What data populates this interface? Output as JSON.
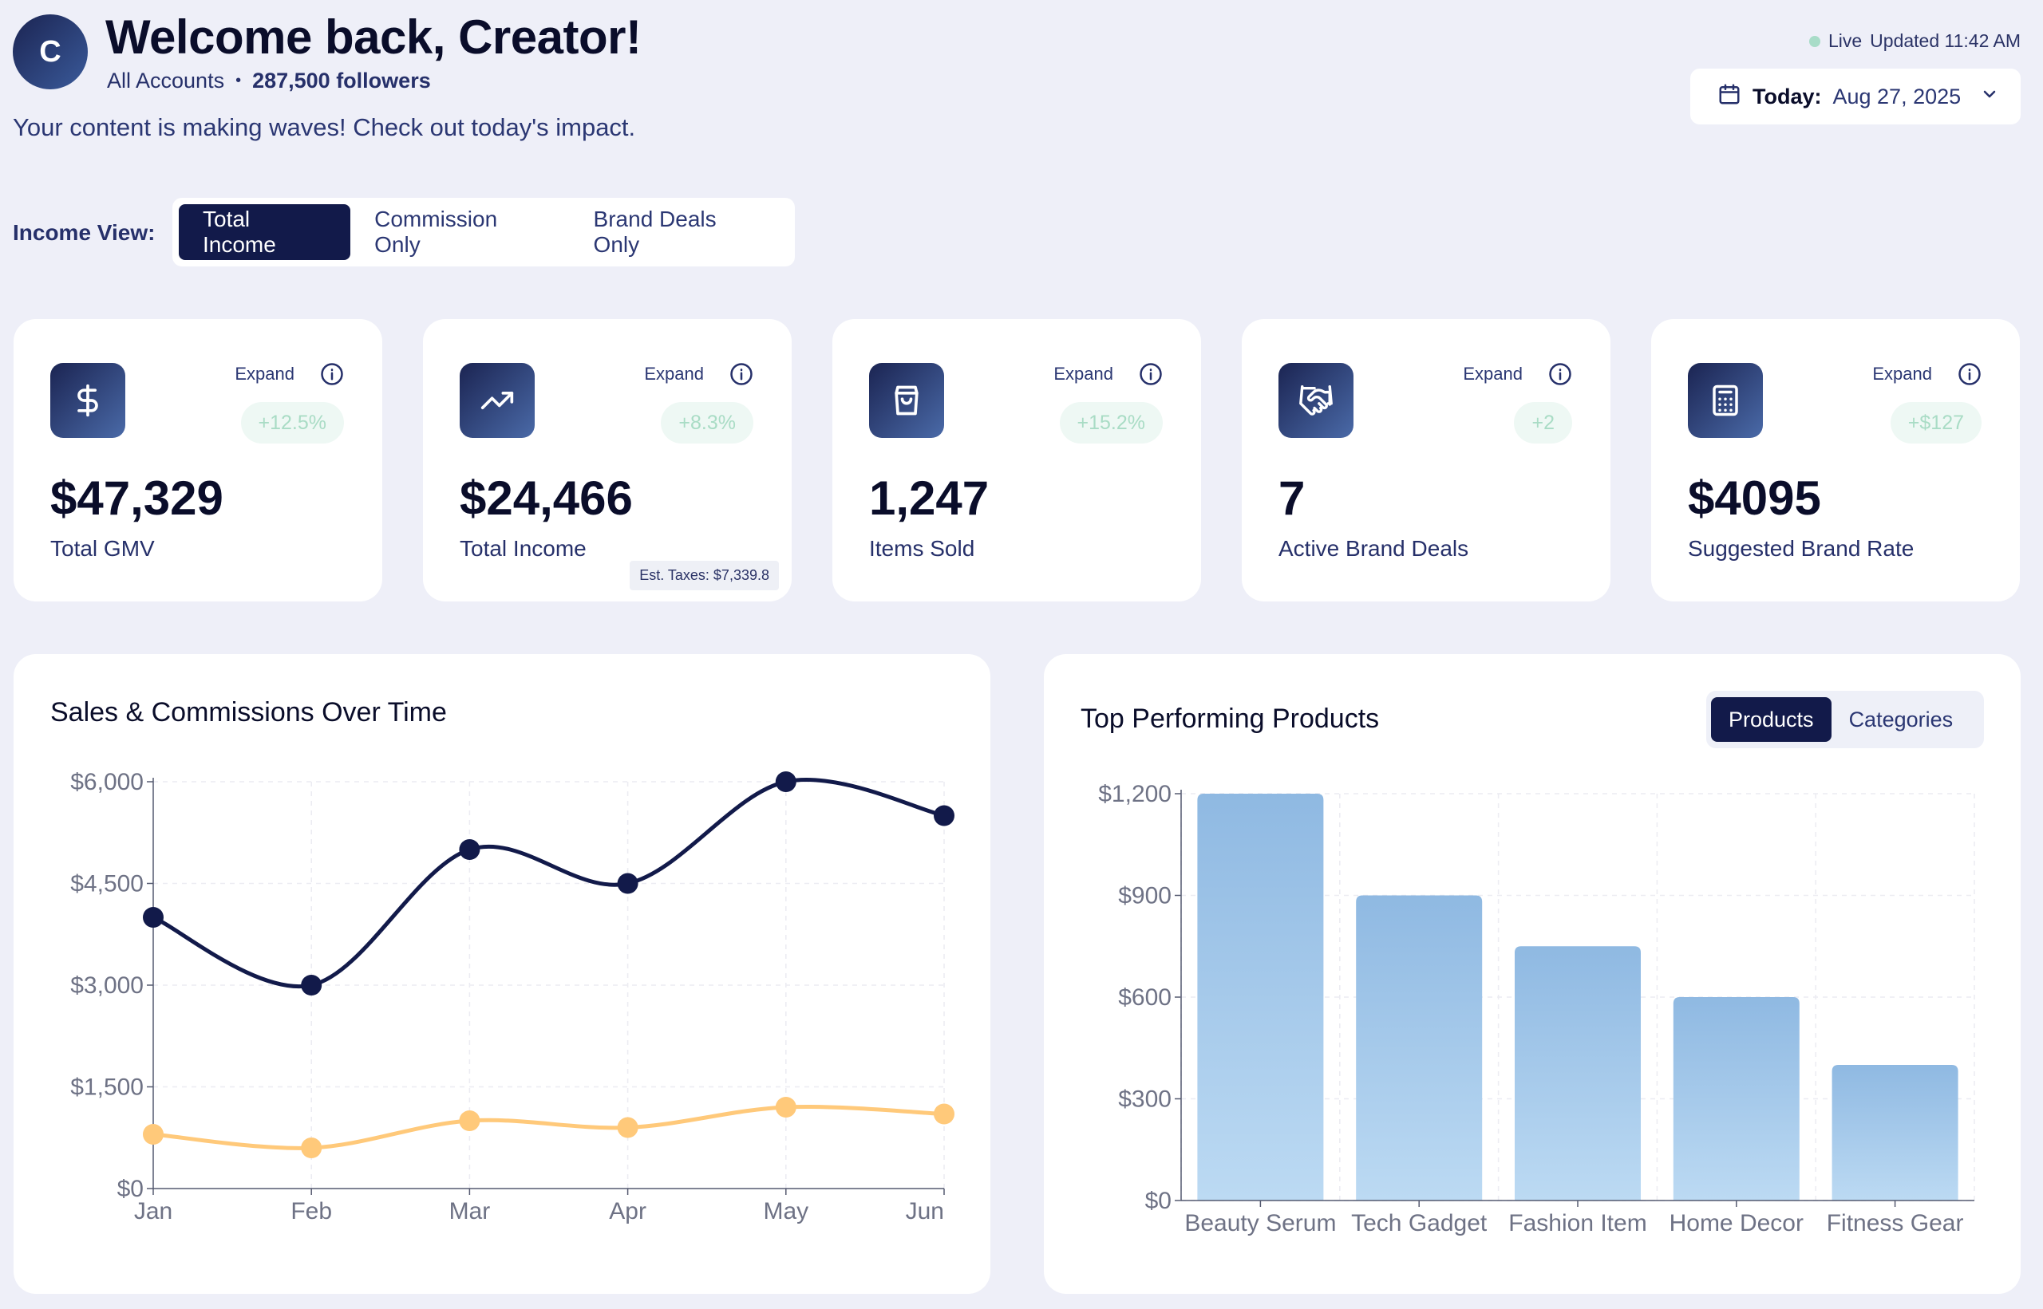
{
  "header": {
    "avatar_letter": "C",
    "welcome": "Welcome back, Creator!",
    "accounts": "All Accounts",
    "followers": "287,500 followers",
    "tagline": "Your content is making waves! Check out today's impact.",
    "live_label": "Live",
    "updated": "Updated 11:42 AM",
    "date_label": "Today:",
    "date_value": "Aug 27, 2025"
  },
  "income_view": {
    "label": "Income View:",
    "options": [
      "Total Income",
      "Commission Only",
      "Brand Deals Only"
    ],
    "selected": "Total Income"
  },
  "cards": [
    {
      "icon": "dollar-icon",
      "expand": "Expand",
      "change": "+12.5%",
      "value": "$47,329",
      "label": "Total GMV"
    },
    {
      "icon": "trending-up-icon",
      "expand": "Expand",
      "change": "+8.3%",
      "value": "$24,466",
      "label": "Total Income",
      "note": "Est. Taxes: $7,339.8"
    },
    {
      "icon": "shopping-bag-icon",
      "expand": "Expand",
      "change": "+15.2%",
      "value": "1,247",
      "label": "Items Sold"
    },
    {
      "icon": "handshake-icon",
      "expand": "Expand",
      "change": "+2",
      "value": "7",
      "label": "Active Brand Deals"
    },
    {
      "icon": "calculator-icon",
      "expand": "Expand",
      "change": "+$127",
      "value": "$4095",
      "label": "Suggested Brand Rate"
    }
  ],
  "colors": {
    "primary": "#121a4a",
    "commission_line": "#ffc97a",
    "bar": "#8fb9e2",
    "positive_badge_bg": "#eef8f4",
    "positive_badge_text": "#a9dcc5"
  },
  "line_panel": {
    "title": "Sales & Commissions Over Time"
  },
  "bar_panel": {
    "title": "Top Performing Products",
    "tabs": [
      "Products",
      "Categories"
    ],
    "selected_tab": "Products"
  },
  "chart_data": [
    {
      "type": "line",
      "title": "Sales & Commissions Over Time",
      "x": [
        "Jan",
        "Feb",
        "Mar",
        "Apr",
        "May",
        "Jun"
      ],
      "series": [
        {
          "values": [
            4000,
            3000,
            5000,
            4500,
            6000,
            5500
          ]
        },
        {
          "values": [
            800,
            600,
            1000,
            900,
            1200,
            1100
          ]
        }
      ],
      "ylim": [
        0,
        6000
      ],
      "yticks": [
        "$0",
        "$1,500",
        "$3,000",
        "$4,500",
        "$6,000"
      ],
      "ytick_values": [
        0,
        1500,
        3000,
        4500,
        6000
      ],
      "grid": true
    },
    {
      "type": "bar",
      "title": "Top Performing Products",
      "categories": [
        "Beauty Serum",
        "Tech Gadget",
        "Fashion Item",
        "Home Decor",
        "Fitness Gear"
      ],
      "values": [
        1200,
        900,
        750,
        600,
        400
      ],
      "ylim": [
        0,
        1200
      ],
      "yticks": [
        "$0",
        "$300",
        "$600",
        "$900",
        "$1,200"
      ],
      "ytick_values": [
        0,
        300,
        600,
        900,
        1200
      ],
      "grid": true
    }
  ]
}
